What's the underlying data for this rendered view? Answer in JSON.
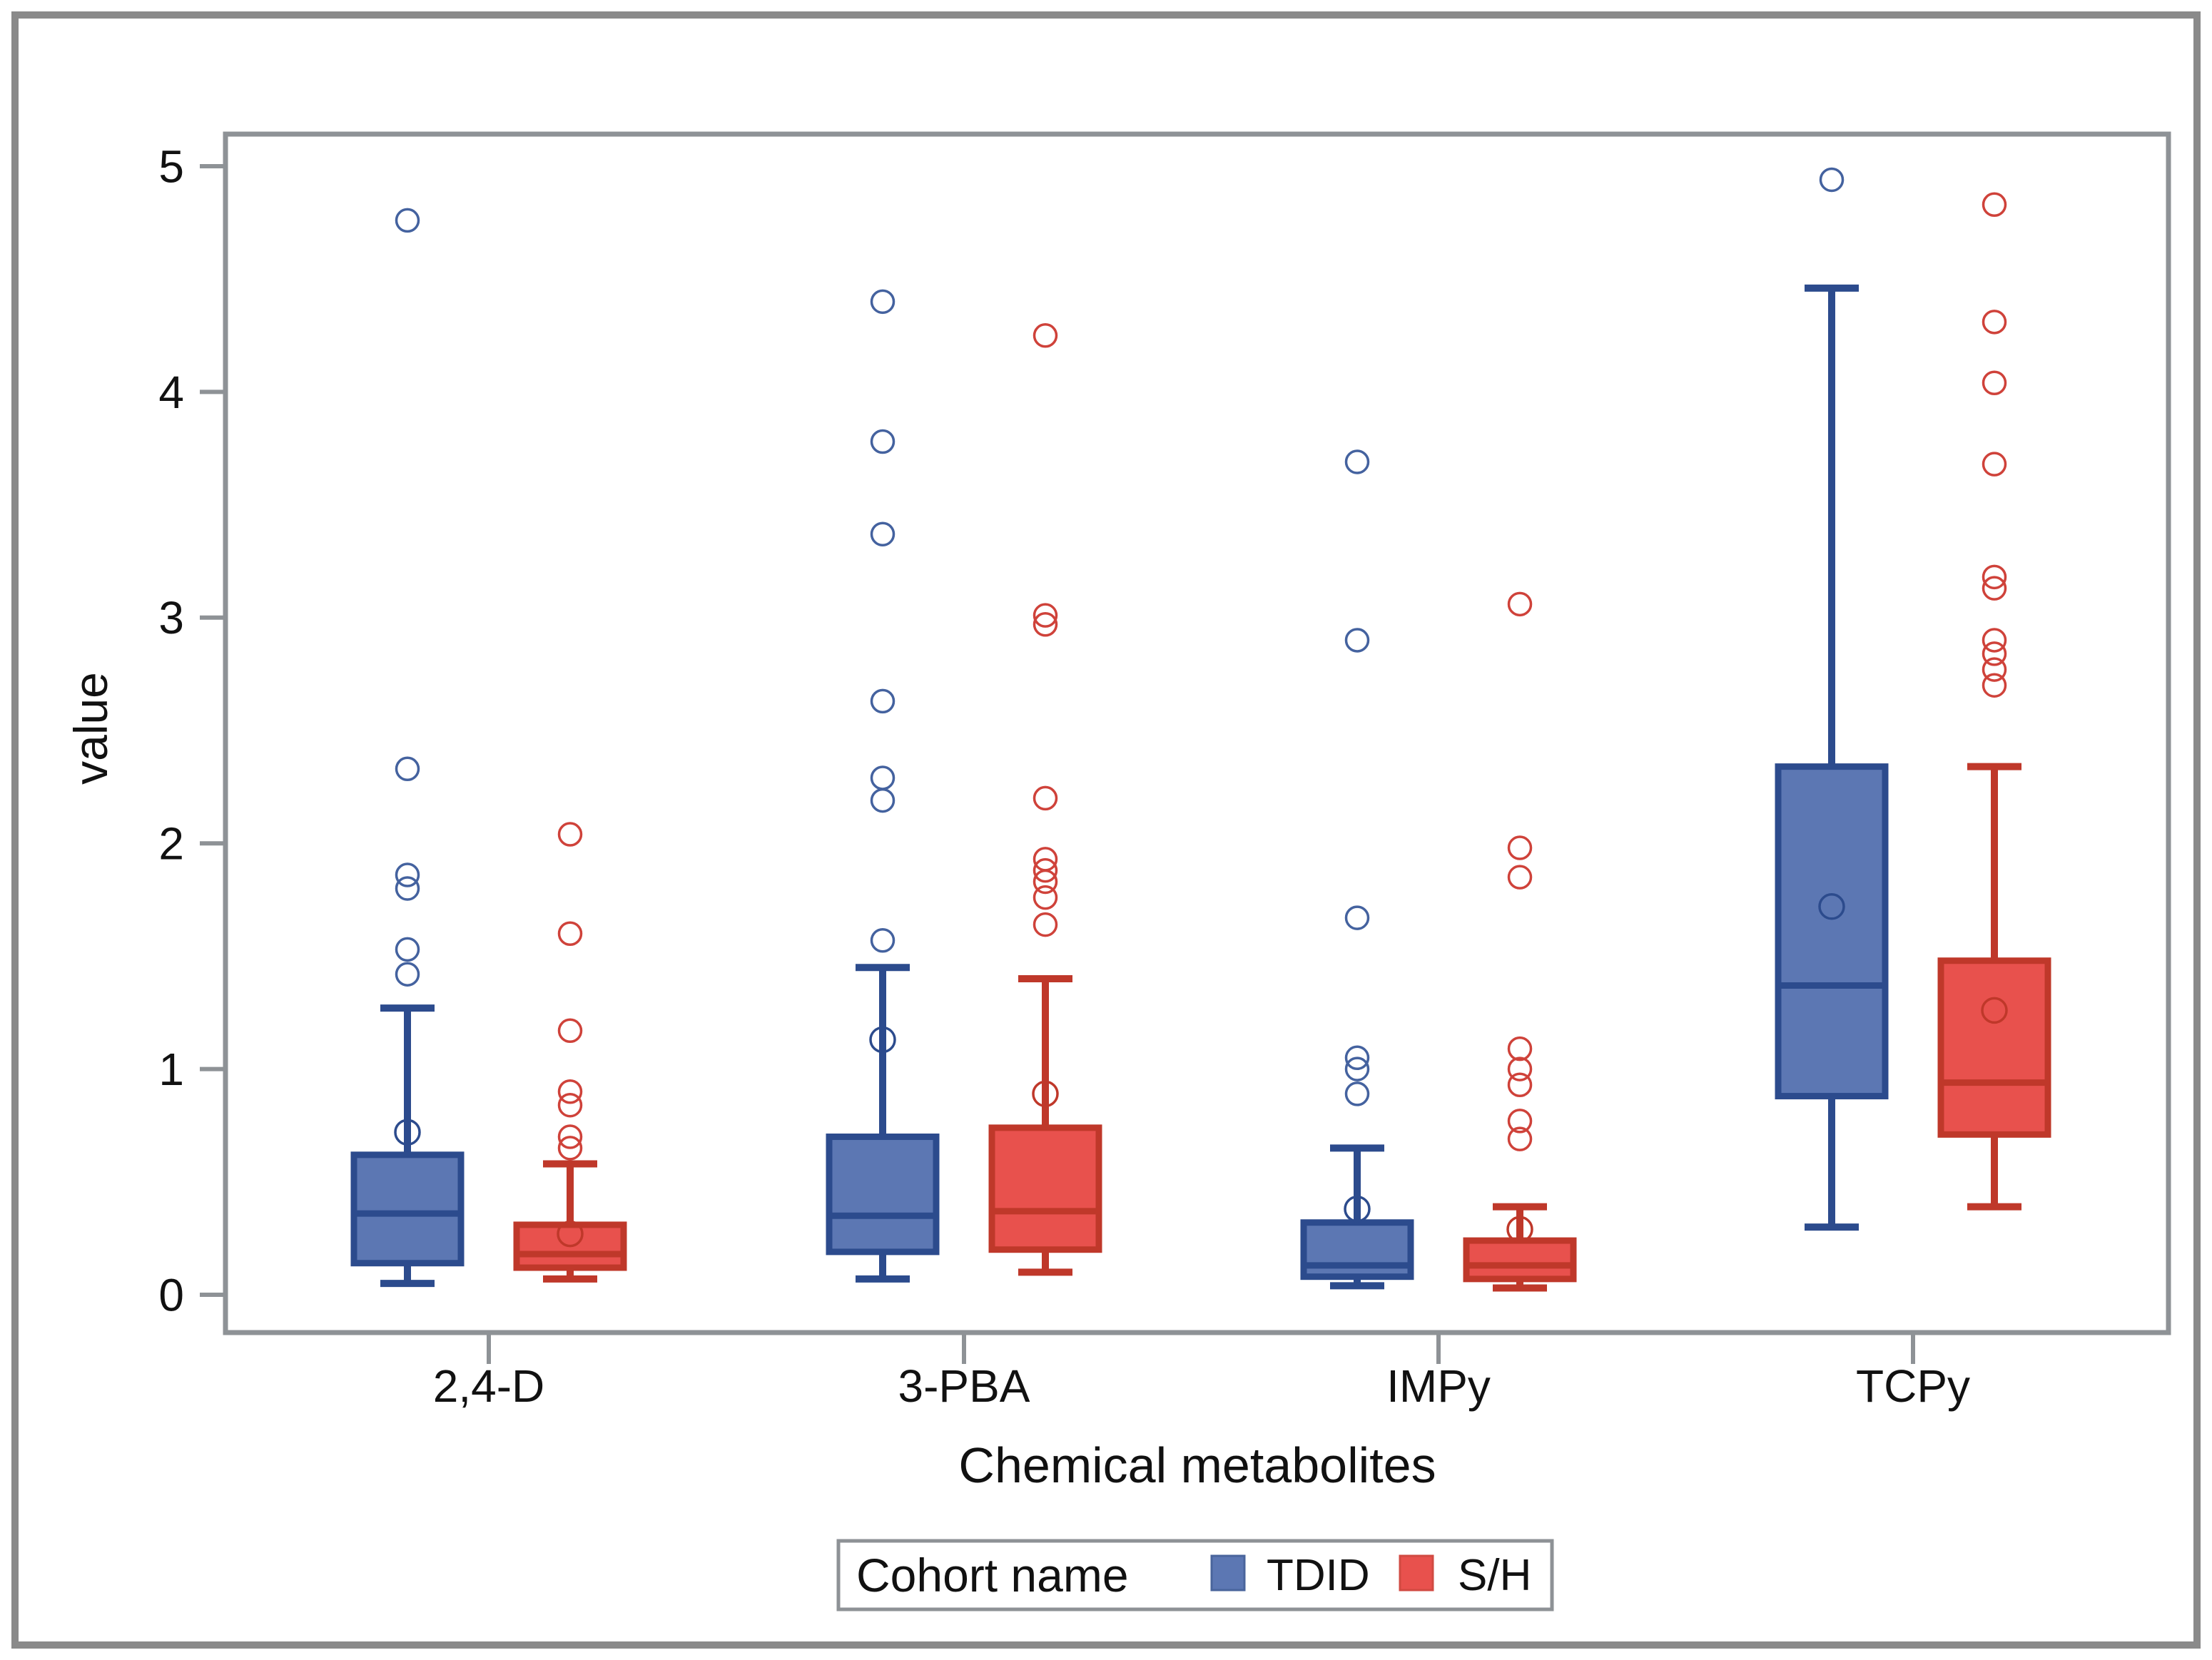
{
  "figure": {
    "background": "#ffffff",
    "border_color": "#8a8a8a",
    "frame_color": "#8e9296",
    "text_color": "#111111"
  },
  "chart_data": {
    "type": "grouped_boxplot",
    "title": "",
    "xlabel": "Chemical metabolites",
    "ylabel": "value",
    "ylim": [
      0,
      5
    ],
    "yticks": [
      "0",
      "1",
      "2",
      "3",
      "4",
      "5"
    ],
    "grid": false,
    "categories": [
      "2,4-D",
      "3-PBA",
      "IMPy",
      "TCPy"
    ],
    "legend": {
      "title": "Cohort name",
      "position": "bottom-center",
      "entries": [
        "TDID",
        "S/H"
      ]
    },
    "series": [
      {
        "name": "TDID",
        "fill": "#5c77b3",
        "stroke": "#2c4b8d",
        "outlier_stroke": "#44629f",
        "boxes": [
          {
            "category": "2,4-D",
            "whisker_low": 0.05,
            "q1": 0.14,
            "median": 0.36,
            "q3": 0.62,
            "whisker_high": 1.27,
            "mean": 0.72,
            "outliers": [
              1.42,
              1.53,
              1.8,
              1.86,
              2.33,
              4.76
            ]
          },
          {
            "category": "3-PBA",
            "whisker_low": 0.07,
            "q1": 0.19,
            "median": 0.35,
            "q3": 0.7,
            "whisker_high": 1.45,
            "mean": 1.13,
            "outliers": [
              1.57,
              2.19,
              2.29,
              2.63,
              3.37,
              3.78,
              4.4
            ]
          },
          {
            "category": "IMPy",
            "whisker_low": 0.04,
            "q1": 0.08,
            "median": 0.13,
            "q3": 0.32,
            "whisker_high": 0.65,
            "mean": 0.38,
            "outliers": [
              0.89,
              1.0,
              1.05,
              1.67,
              2.9,
              3.69
            ]
          },
          {
            "category": "TCPy",
            "whisker_low": 0.3,
            "q1": 0.88,
            "median": 1.37,
            "q3": 2.34,
            "whisker_high": 4.46,
            "mean": 1.72,
            "outliers": [
              4.94
            ]
          }
        ]
      },
      {
        "name": "S/H",
        "fill": "#e8514d",
        "stroke": "#bf382a",
        "outlier_stroke": "#cf423a",
        "boxes": [
          {
            "category": "2,4-D",
            "whisker_low": 0.07,
            "q1": 0.12,
            "median": 0.18,
            "q3": 0.31,
            "whisker_high": 0.58,
            "mean": 0.27,
            "outliers": [
              0.65,
              0.7,
              0.84,
              0.9,
              1.17,
              1.6,
              2.04
            ]
          },
          {
            "category": "3-PBA",
            "whisker_low": 0.1,
            "q1": 0.2,
            "median": 0.37,
            "q3": 0.74,
            "whisker_high": 1.4,
            "mean": 0.89,
            "outliers": [
              1.64,
              1.76,
              1.83,
              1.88,
              1.93,
              2.2,
              2.97,
              3.01,
              4.25
            ]
          },
          {
            "category": "IMPy",
            "whisker_low": 0.03,
            "q1": 0.07,
            "median": 0.13,
            "q3": 0.24,
            "whisker_high": 0.39,
            "mean": 0.29,
            "outliers": [
              0.69,
              0.77,
              0.93,
              1.0,
              1.09,
              1.85,
              1.98,
              3.06
            ]
          },
          {
            "category": "TCPy",
            "whisker_low": 0.39,
            "q1": 0.71,
            "median": 0.94,
            "q3": 1.48,
            "whisker_high": 2.34,
            "mean": 1.26,
            "outliers": [
              2.7,
              2.77,
              2.84,
              2.9,
              3.13,
              3.18,
              3.68,
              4.04,
              4.31,
              4.83
            ]
          }
        ]
      }
    ]
  }
}
